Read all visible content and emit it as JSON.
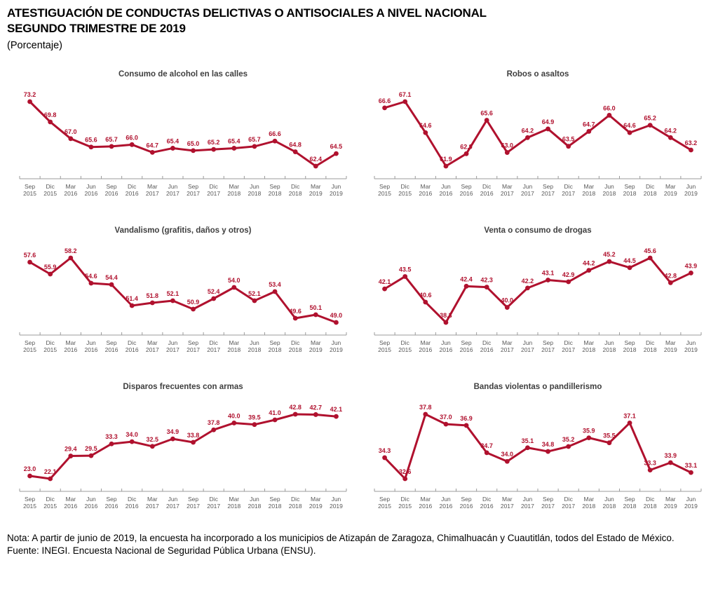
{
  "header": {
    "title_line1": "ATESTIGUACIÓN DE CONDUCTAS DELICTIVAS O ANTISOCIALES A NIVEL NACIONAL",
    "title_line2": "SEGUNDO TRIMESTRE DE 2019",
    "subtitle": "(Porcentaje)"
  },
  "footer": {
    "note": "Nota: A partir de junio de 2019, la encuesta ha incorporado a los municipios de Atizapán de Zaragoza, Chimalhuacán y Cuautitlán, todos del Estado de México.",
    "source": "Fuente: INEGI. Encuesta Nacional de Seguridad Pública Urbana (ENSU)."
  },
  "colors": {
    "line": "#b0112e",
    "point": "#b0112e",
    "value_label": "#b0112e",
    "axis": "#9b9b9b",
    "tick_label": "#595959",
    "chart_title": "#3f3f3f"
  },
  "chart_layout": {
    "y_axis": "hidden",
    "grid": false,
    "data_labels": true,
    "marker": "circle"
  },
  "chart_data": [
    {
      "type": "line",
      "title": "Consumo de alcohol en las calles",
      "categories": [
        "Sep 2015",
        "Dic 2015",
        "Mar 2016",
        "Jun 2016",
        "Sep 2016",
        "Dic 2016",
        "Mar 2017",
        "Jun 2017",
        "Sep 2017",
        "Dic 2017",
        "Mar 2018",
        "Jun 2018",
        "Sep 2018",
        "Dic 2018",
        "Mar 2019",
        "Jun 2019"
      ],
      "values": [
        73.2,
        69.8,
        67.0,
        65.6,
        65.7,
        66.0,
        64.7,
        65.4,
        65.0,
        65.2,
        65.4,
        65.7,
        66.6,
        64.8,
        62.4,
        64.5
      ]
    },
    {
      "type": "line",
      "title": "Robos o asaltos",
      "categories": [
        "Sep 2015",
        "Dic 2015",
        "Mar 2016",
        "Jun 2016",
        "Sep 2016",
        "Dic 2016",
        "Mar 2017",
        "Jun 2017",
        "Sep 2017",
        "Dic 2017",
        "Mar 2018",
        "Jun 2018",
        "Sep 2018",
        "Dic 2018",
        "Mar 2019",
        "Jun 2019"
      ],
      "values": [
        66.6,
        67.1,
        64.6,
        61.9,
        62.9,
        65.6,
        63.0,
        64.2,
        64.9,
        63.5,
        64.7,
        66.0,
        64.6,
        65.2,
        64.2,
        63.2
      ]
    },
    {
      "type": "line",
      "title": "Vandalismo (grafitis, daños y otros)",
      "categories": [
        "Sep 2015",
        "Dic 2015",
        "Mar 2016",
        "Jun 2016",
        "Sep 2016",
        "Dic 2016",
        "Mar 2017",
        "Jun 2017",
        "Sep 2017",
        "Dic 2017",
        "Mar 2018",
        "Jun 2018",
        "Sep 2018",
        "Dic 2018",
        "Mar 2019",
        "Jun 2019"
      ],
      "values": [
        57.6,
        55.9,
        58.2,
        54.6,
        54.4,
        51.4,
        51.8,
        52.1,
        50.9,
        52.4,
        54.0,
        52.1,
        53.4,
        49.6,
        50.1,
        49.0
      ]
    },
    {
      "type": "line",
      "title": "Venta o consumo de drogas",
      "categories": [
        "Sep 2015",
        "Dic 2015",
        "Mar 2016",
        "Jun 2016",
        "Sep 2016",
        "Dic 2016",
        "Mar 2017",
        "Jun 2017",
        "Sep 2017",
        "Dic 2017",
        "Mar 2018",
        "Jun 2018",
        "Sep 2018",
        "Dic 2018",
        "Mar 2019",
        "Jun 2019"
      ],
      "values": [
        42.1,
        43.5,
        40.6,
        38.3,
        42.4,
        42.3,
        40.0,
        42.2,
        43.1,
        42.9,
        44.2,
        45.2,
        44.5,
        45.6,
        42.8,
        43.9
      ]
    },
    {
      "type": "line",
      "title": "Disparos frecuentes con armas",
      "categories": [
        "Sep 2015",
        "Dic 2015",
        "Mar 2016",
        "Jun 2016",
        "Sep 2016",
        "Dic 2016",
        "Mar 2017",
        "Jun 2017",
        "Sep 2017",
        "Dic 2017",
        "Mar 2018",
        "Jun 2018",
        "Sep 2018",
        "Dic 2018",
        "Mar 2019",
        "Jun 2019"
      ],
      "values": [
        23.0,
        22.1,
        29.4,
        29.5,
        33.3,
        34.0,
        32.5,
        34.9,
        33.8,
        37.8,
        40.0,
        39.5,
        41.0,
        42.8,
        42.7,
        42.1
      ]
    },
    {
      "type": "line",
      "title": "Bandas violentas o pandillerismo",
      "categories": [
        "Sep 2015",
        "Dic 2015",
        "Mar 2016",
        "Jun 2016",
        "Sep 2016",
        "Dic 2016",
        "Mar 2017",
        "Jun 2017",
        "Sep 2017",
        "Dic 2017",
        "Mar 2018",
        "Jun 2018",
        "Sep 2018",
        "Dic 2018",
        "Mar 2019",
        "Jun 2019"
      ],
      "values": [
        34.3,
        32.6,
        37.8,
        37.0,
        36.9,
        34.7,
        34.0,
        35.1,
        34.8,
        35.2,
        35.9,
        35.5,
        37.1,
        33.3,
        33.9,
        33.1
      ]
    }
  ]
}
